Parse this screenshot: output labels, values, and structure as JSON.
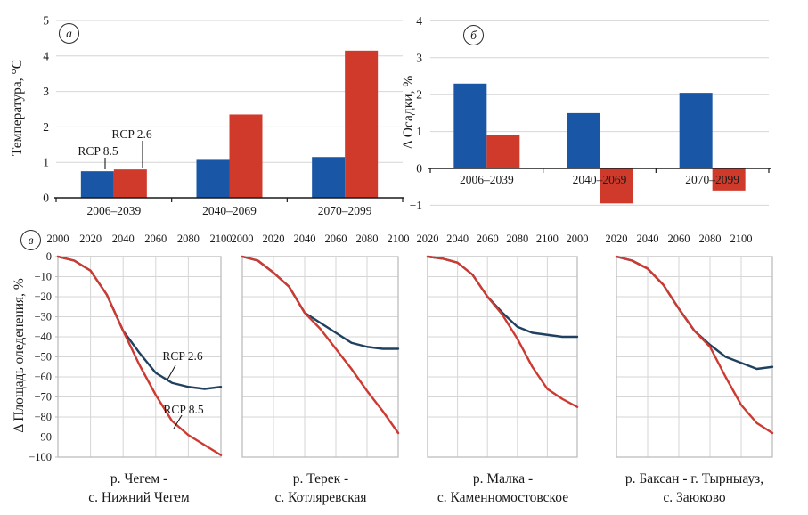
{
  "colors": {
    "bar_blue": "#1957A6",
    "bar_red": "#CF3A2B",
    "line_navy": "#1F415F",
    "line_red": "#CC3A31",
    "grid": "#D6D6D6",
    "plot_border": "#BDBDBD",
    "axis": "#1A1A1A"
  },
  "chart_data": [
    {
      "id": "temperature-change",
      "type": "bar",
      "panel": "а",
      "ylabel": "Температура, °С",
      "ylim": [
        0,
        5
      ],
      "yticks": [
        0,
        1,
        2,
        3,
        4,
        5
      ],
      "categories": [
        "2006–2039",
        "2040–2069",
        "2070–2099"
      ],
      "series": [
        {
          "name": "RCP 8.5",
          "color_key": "bar_blue",
          "values": [
            0.75,
            1.07,
            1.15
          ]
        },
        {
          "name": "RCP 2.6",
          "color_key": "bar_red",
          "values": [
            0.8,
            2.35,
            4.15
          ]
        }
      ],
      "legend_position": "annotations-on-first-group",
      "grid": "horizontal"
    },
    {
      "id": "precipitation-change",
      "type": "bar",
      "panel": "б",
      "ylabel": "Δ Осадки, %",
      "ylim": [
        -1,
        4
      ],
      "yticks": [
        -1,
        0,
        1,
        2,
        3,
        4
      ],
      "categories": [
        "2006–2039",
        "2040–2069",
        "2070–2099"
      ],
      "series": [
        {
          "name": "RCP 8.5",
          "color_key": "bar_blue",
          "values": [
            2.3,
            1.5,
            2.05
          ]
        },
        {
          "name": "RCP 2.6",
          "color_key": "bar_red",
          "values": [
            0.9,
            -0.95,
            -0.6
          ]
        }
      ],
      "grid": "horizontal"
    },
    {
      "id": "glaciation-area-change",
      "type": "line",
      "panel": "в",
      "ylabel": "Δ Площадь оледенения, %",
      "ylim": [
        -100,
        0
      ],
      "x": [
        2000,
        2010,
        2020,
        2030,
        2040,
        2050,
        2060,
        2070,
        2080,
        2090,
        2100
      ],
      "yticks": [
        0,
        -10,
        -20,
        -30,
        -40,
        -50,
        -60,
        -70,
        -80,
        -90,
        -100
      ],
      "grid": "both",
      "charts": [
        {
          "title": [
            "р. Чегем -",
            "с. Нижний Чегем"
          ],
          "xtick_labels": [
            "2000",
            "2020",
            "2040",
            "2060",
            "2080",
            "2100"
          ],
          "show_yticks": true,
          "series": [
            {
              "name": "RCP 2.6",
              "color_key": "line_navy",
              "values": [
                0,
                -2,
                -7,
                -19,
                -37,
                -48,
                -58,
                -63,
                -65,
                -66,
                -65
              ]
            },
            {
              "name": "RCP 8.5",
              "color_key": "line_red",
              "values": [
                0,
                -2,
                -7,
                -19,
                -37,
                -54,
                -69,
                -82,
                -89,
                -94,
                -99
              ]
            }
          ]
        },
        {
          "title": [
            "р. Терек -",
            "с. Котляревская"
          ],
          "xtick_labels": [
            "2000",
            "2020",
            "2040",
            "2060",
            "2080",
            "2100"
          ],
          "show_yticks": false,
          "series": [
            {
              "name": "RCP 2.6",
              "color_key": "line_navy",
              "values": [
                0,
                -2,
                -8,
                -15,
                -28,
                -33,
                -38,
                -43,
                -45,
                -46,
                -46
              ]
            },
            {
              "name": "RCP 8.5",
              "color_key": "line_red",
              "values": [
                0,
                -2,
                -8,
                -15,
                -28,
                -36,
                -46,
                -56,
                -67,
                -77,
                -88
              ]
            }
          ]
        },
        {
          "title": [
            "р. Малка -",
            "с. Каменномостовское"
          ],
          "xtick_labels": [
            "2020",
            "2040",
            "2060",
            "2080",
            "2100",
            "2000"
          ],
          "show_yticks": false,
          "series": [
            {
              "name": "RCP 2.6",
              "color_key": "line_navy",
              "values": [
                0,
                -1,
                -3,
                -9,
                -20,
                -28,
                -35,
                -38,
                -39,
                -40,
                -40
              ]
            },
            {
              "name": "RCP 8.5",
              "color_key": "line_red",
              "values": [
                0,
                -1,
                -3,
                -9,
                -20,
                -29,
                -41,
                -55,
                -66,
                -71,
                -75
              ]
            }
          ]
        },
        {
          "title": [
            "р. Баксан - г. Тырныауз,",
            "с. Заюково"
          ],
          "xtick_labels": [
            "2020",
            "2040",
            "2060",
            "2080",
            "2100",
            ""
          ],
          "show_yticks": false,
          "series": [
            {
              "name": "RCP 2.6",
              "color_key": "line_navy",
              "values": [
                0,
                -2,
                -6,
                -14,
                -26,
                -37,
                -44,
                -50,
                -53,
                -56,
                -55
              ]
            },
            {
              "name": "RCP 8.5",
              "color_key": "line_red",
              "values": [
                0,
                -2,
                -6,
                -14,
                -26,
                -37,
                -45,
                -60,
                -74,
                -83,
                -88
              ]
            }
          ]
        }
      ]
    }
  ]
}
